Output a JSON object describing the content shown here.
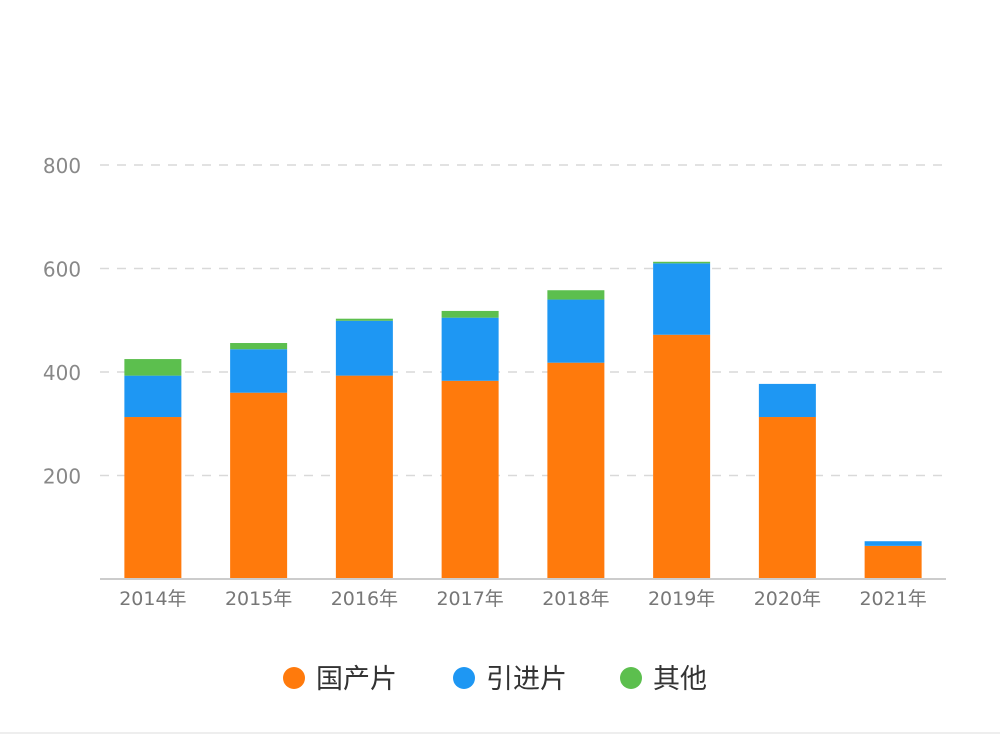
{
  "chart_data": {
    "type": "bar",
    "stacked": true,
    "title": "",
    "xlabel": "",
    "ylabel": "",
    "categories": [
      "2014年",
      "2015年",
      "2016年",
      "2017年",
      "2018年",
      "2019年",
      "2020年",
      "2021年"
    ],
    "series": [
      {
        "name": "国产片",
        "color": "#ff7a0c",
        "values": [
          313,
          360,
          393,
          383,
          418,
          472,
          313,
          64
        ]
      },
      {
        "name": "引进片",
        "color": "#1e97f3",
        "values": [
          80,
          84,
          106,
          122,
          122,
          138,
          64,
          9
        ]
      },
      {
        "name": "其他",
        "color": "#5cbf4e",
        "values": [
          32,
          12,
          4,
          13,
          18,
          3,
          0,
          0
        ]
      }
    ],
    "yticks": [
      "200",
      "400",
      "600",
      "800"
    ],
    "ylim": [
      0,
      800
    ],
    "grid": true,
    "legend_position": "bottom"
  }
}
